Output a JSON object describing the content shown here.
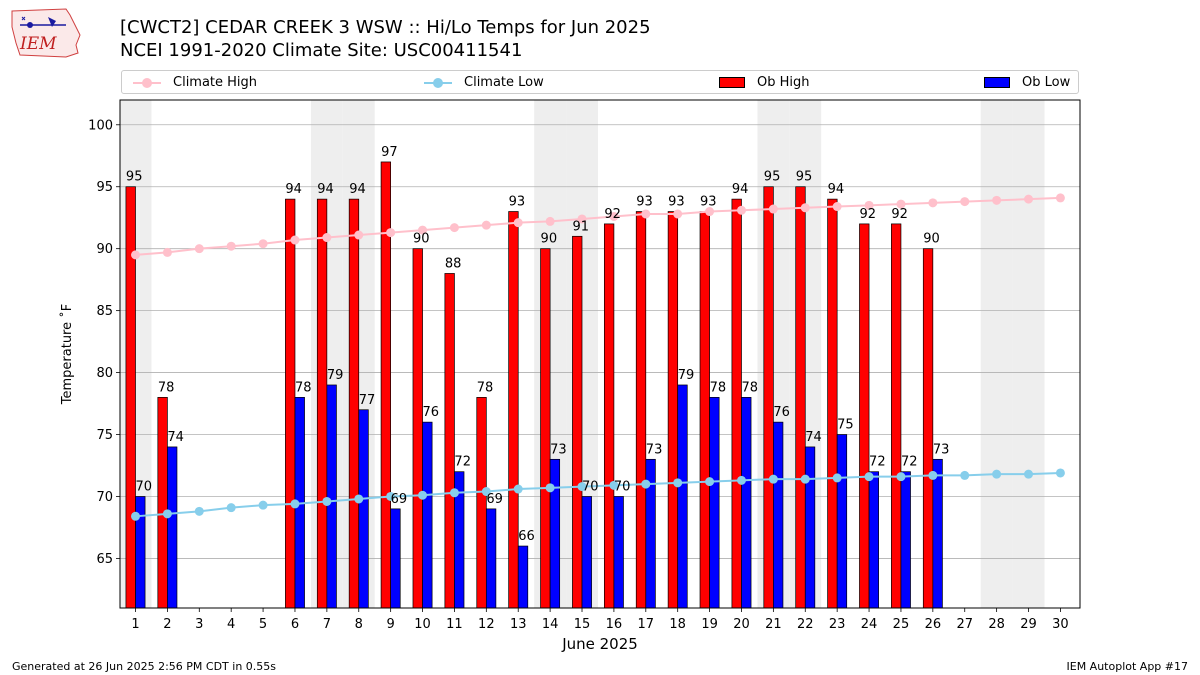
{
  "header": {
    "title_line1": "[CWCT2] CEDAR CREEK 3 WSW :: Hi/Lo Temps for Jun 2025",
    "title_line2": "NCEI 1991-2020 Climate Site: USC00411541"
  },
  "logo": {
    "text": "IEM",
    "icon": "iem-iowa-logo"
  },
  "footer": {
    "left": "Generated at 26 Jun 2025 2:56 PM CDT in 0.55s",
    "right": "IEM Autoplot App #17"
  },
  "colors": {
    "ob_high": "#ff0000",
    "ob_low": "#0000ff",
    "climate_high": "#ffc0cb",
    "climate_low": "#87ceeb",
    "weekend_shade": "#eeeeee",
    "grid": "#b0b0b0"
  },
  "chart_data": {
    "type": "bar",
    "xlabel": "June 2025",
    "ylabel": "Temperature ˚F",
    "ylim": [
      61,
      102
    ],
    "yticks": [
      65,
      70,
      75,
      80,
      85,
      90,
      95,
      100
    ],
    "grid": "horizontal",
    "legend_placement": "top",
    "categories": [
      "1",
      "2",
      "3",
      "4",
      "5",
      "6",
      "7",
      "8",
      "9",
      "10",
      "11",
      "12",
      "13",
      "14",
      "15",
      "16",
      "17",
      "18",
      "19",
      "20",
      "21",
      "22",
      "23",
      "24",
      "25",
      "26",
      "27",
      "28",
      "29",
      "30"
    ],
    "shaded_days": [
      1,
      7,
      8,
      14,
      15,
      21,
      22,
      28,
      29
    ],
    "series": [
      {
        "name": "Climate High",
        "kind": "line",
        "values": [
          89.5,
          89.7,
          90.0,
          90.2,
          90.4,
          90.7,
          90.9,
          91.1,
          91.3,
          91.5,
          91.7,
          91.9,
          92.1,
          92.2,
          92.4,
          92.6,
          92.8,
          92.8,
          93.0,
          93.1,
          93.2,
          93.3,
          93.4,
          93.5,
          93.6,
          93.7,
          93.8,
          93.9,
          94.0,
          94.1
        ]
      },
      {
        "name": "Climate Low",
        "kind": "line",
        "values": [
          68.4,
          68.6,
          68.8,
          69.1,
          69.3,
          69.4,
          69.6,
          69.8,
          70.0,
          70.1,
          70.3,
          70.4,
          70.6,
          70.7,
          70.8,
          70.9,
          71.0,
          71.1,
          71.2,
          71.3,
          71.4,
          71.4,
          71.5,
          71.6,
          71.6,
          71.7,
          71.7,
          71.8,
          71.8,
          71.9
        ]
      },
      {
        "name": "Ob High",
        "kind": "bar",
        "values": [
          95,
          78,
          null,
          null,
          null,
          94,
          94,
          94,
          97,
          90,
          88,
          78,
          93,
          90,
          91,
          92,
          93,
          93,
          93,
          94,
          95,
          95,
          94,
          92,
          92,
          90,
          null,
          null,
          null,
          null
        ]
      },
      {
        "name": "Ob Low",
        "kind": "bar",
        "values": [
          70,
          74,
          null,
          null,
          null,
          78,
          79,
          77,
          69,
          76,
          72,
          69,
          66,
          73,
          70,
          70,
          73,
          79,
          78,
          78,
          76,
          74,
          75,
          72,
          72,
          73,
          null,
          null,
          null,
          null
        ]
      }
    ]
  }
}
